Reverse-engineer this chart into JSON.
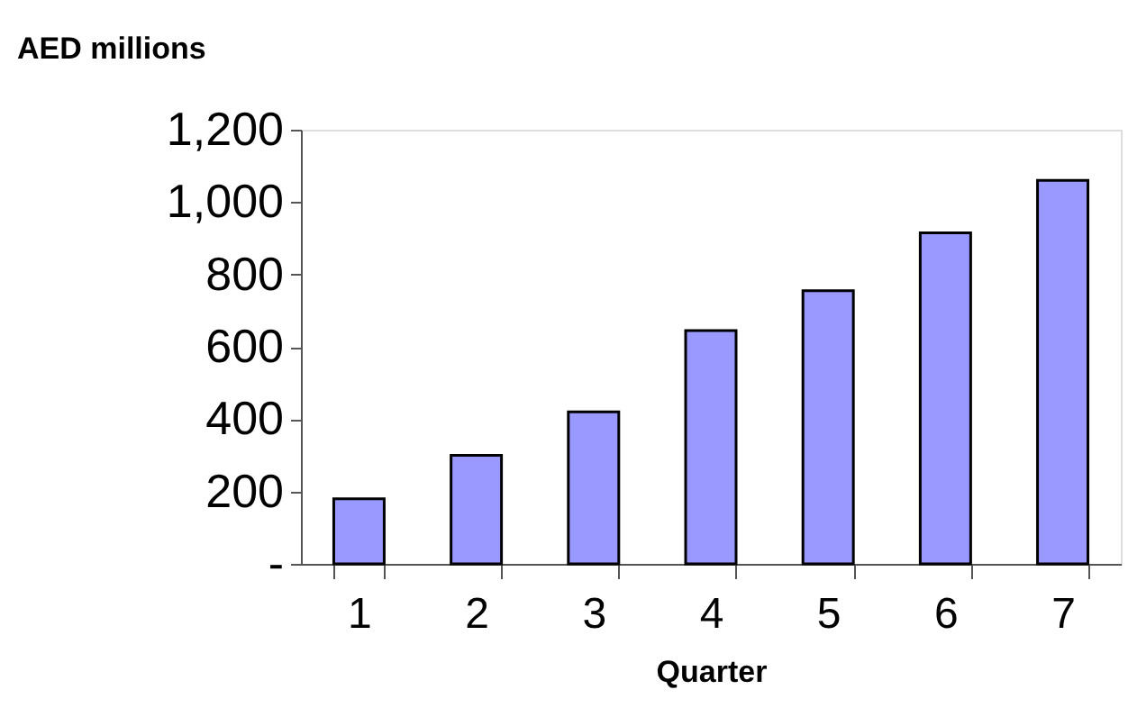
{
  "chart_data": {
    "type": "bar",
    "xlabel": "Quarter",
    "ylabel": "AED millions",
    "categories": [
      "1",
      "2",
      "3",
      "4",
      "5",
      "6",
      "7"
    ],
    "values": [
      180,
      300,
      420,
      645,
      755,
      915,
      1060
    ],
    "color": "#9999ff",
    "ylim": [
      0,
      1200
    ],
    "yticks": [
      {
        "value": 0,
        "label": "-"
      },
      200,
      400,
      600,
      800,
      {
        "value": 1000,
        "label": "1,000"
      },
      {
        "value": 1200,
        "label": "1,200"
      }
    ],
    "grid": false,
    "legend": false
  }
}
